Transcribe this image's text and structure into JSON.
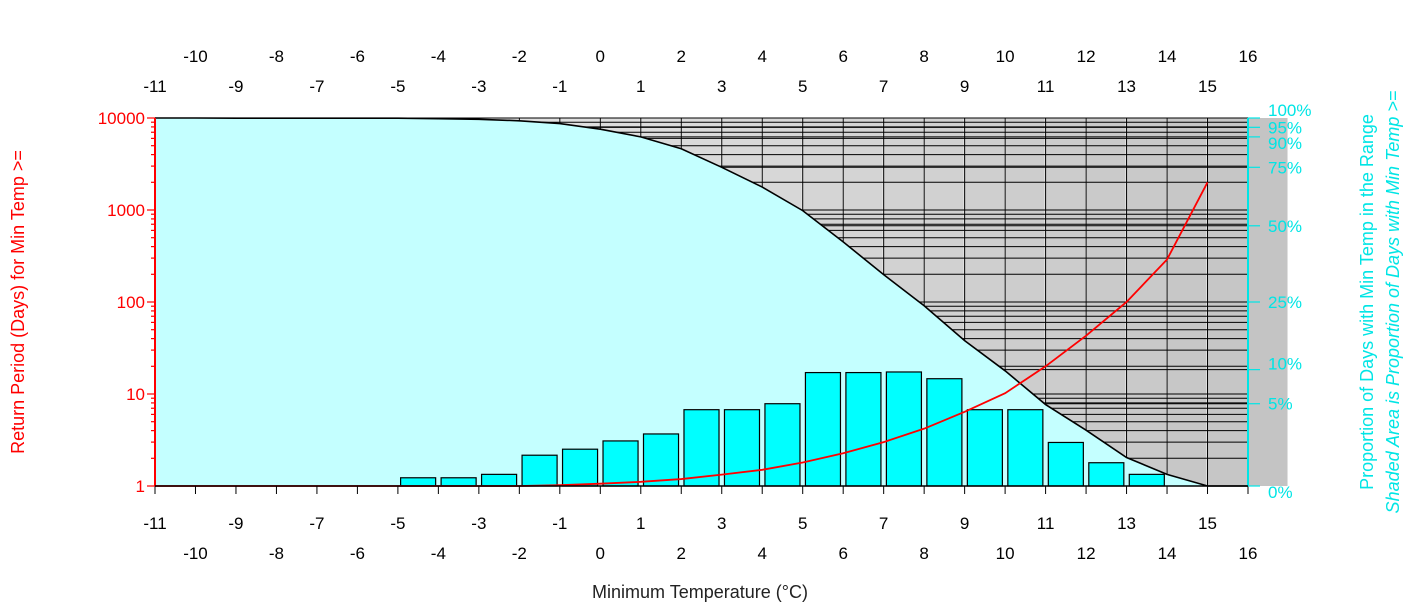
{
  "chart_data": {
    "type": "bar",
    "xlabel": "Minimum Temperature (°C)",
    "ylabel_left": "Return Period (Days) for Min Temp >=",
    "ylabel_right": "Proportion of Days with Min Temp in the Range",
    "ylabel_right2": "Shaded Area is Proportion of Days with Min Temp >=",
    "x_ticks_outer": [
      "-10",
      "-8",
      "-6",
      "-4",
      "-2",
      "0",
      "2",
      "4",
      "6",
      "8",
      "10",
      "12",
      "14",
      "16"
    ],
    "x_ticks_inner": [
      "-11",
      "-9",
      "-7",
      "-5",
      "-3",
      "-1",
      "1",
      "3",
      "5",
      "7",
      "9",
      "11",
      "13",
      "15"
    ],
    "left_ticks": [
      "10000",
      "1000",
      "100",
      "10",
      "1"
    ],
    "right_ticks": [
      "100%",
      "95%",
      "90%",
      "75%",
      "50%",
      "25%",
      "10%",
      "5%",
      "0%"
    ],
    "xlim": [
      -11.5,
      16.5
    ],
    "left_ylim": [
      1,
      10000
    ],
    "left_scale": "log",
    "right_scale": "sqrt",
    "colors": {
      "return_period": "#ff0000",
      "bars": "#00ffff",
      "shaded_area": "#c4ffff",
      "right_axis": "#00e5e5"
    },
    "bars": {
      "name": "Proportion of Days with Min Temp in the Range",
      "x": [
        -4.5,
        -3.5,
        -2.5,
        -1.5,
        -0.5,
        0.5,
        1.5,
        2.5,
        3.5,
        4.5,
        5.5,
        6.5,
        7.5,
        8.5,
        9.5,
        10.5,
        11.5,
        12.5,
        13.5
      ],
      "values_percent": [
        0.05,
        0.05,
        0.1,
        0.7,
        1.0,
        1.5,
        2.0,
        4.3,
        4.3,
        5.0,
        9.5,
        9.5,
        9.6,
        8.5,
        4.3,
        4.3,
        1.4,
        0.4,
        0.1
      ]
    },
    "exceedance": {
      "name": "Shaded Area is Proportion of Days with Min Temp >=",
      "x": [
        -11,
        -10,
        -9,
        -8,
        -7,
        -6,
        -5,
        -4,
        -3,
        -2,
        -1,
        0,
        1,
        2,
        3,
        4,
        5,
        6,
        7,
        8,
        9,
        10,
        11,
        12,
        13,
        14,
        15,
        16
      ],
      "values_percent": [
        100,
        100,
        99.9,
        99.9,
        99.9,
        99.9,
        99.9,
        99.6,
        99.3,
        98.5,
        97,
        94,
        90,
        84,
        75,
        66,
        56,
        44,
        33,
        24,
        15.6,
        9.8,
        4.9,
        2.3,
        0.6,
        0.1,
        0,
        0
      ]
    },
    "return_period": {
      "name": "Return Period (Days) for Min Temp >=",
      "x": [
        -11,
        -10,
        -9,
        -8,
        -7,
        -6,
        -5,
        -4,
        -3,
        -2,
        -1,
        0,
        1,
        2,
        3,
        4,
        5,
        6,
        7,
        8,
        9,
        10,
        11,
        12,
        13,
        14,
        15
      ],
      "values": [
        1,
        1,
        1,
        1,
        1,
        1,
        1,
        1,
        1,
        1,
        1.02,
        1.06,
        1.11,
        1.19,
        1.33,
        1.5,
        1.8,
        2.27,
        3.0,
        4.2,
        6.4,
        10.2,
        20,
        43,
        100,
        290,
        2000
      ]
    }
  }
}
